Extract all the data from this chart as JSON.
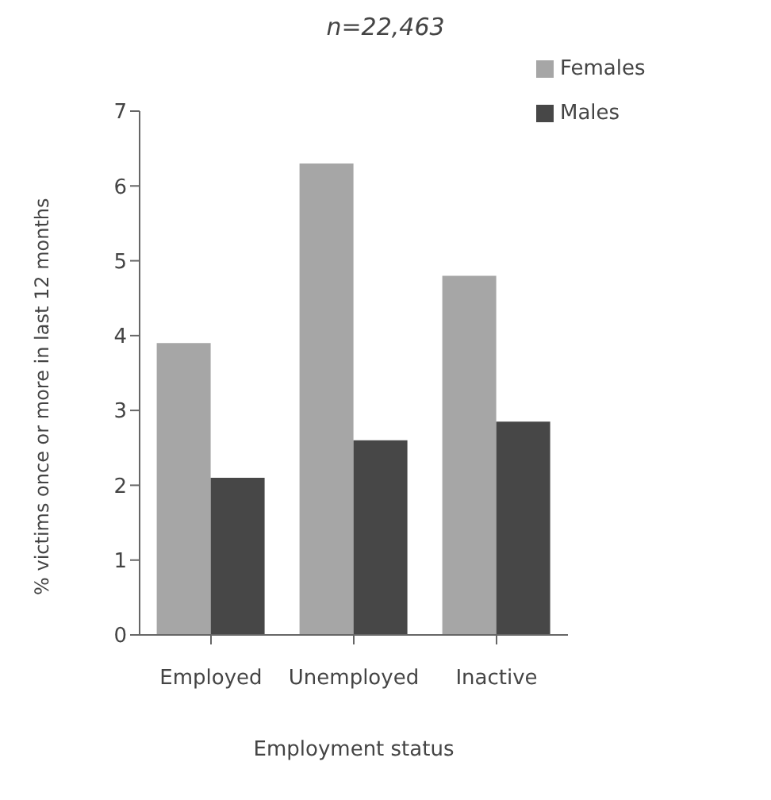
{
  "chart_data": {
    "type": "bar",
    "title": "n=22,463",
    "xlabel": "Employment status",
    "ylabel": "% victims once or more in last 12 months",
    "categories": [
      "Employed",
      "Unemployed",
      "Inactive"
    ],
    "series": [
      {
        "name": "Females",
        "color": "#a6a6a6",
        "values": [
          3.9,
          6.3,
          4.8
        ]
      },
      {
        "name": "Males",
        "color": "#474747",
        "values": [
          2.1,
          2.6,
          2.85
        ]
      }
    ],
    "ylim": [
      0,
      7
    ],
    "yticks": [
      0,
      1,
      2,
      3,
      4,
      5,
      6,
      7
    ],
    "grid": false,
    "legend": "top right"
  }
}
